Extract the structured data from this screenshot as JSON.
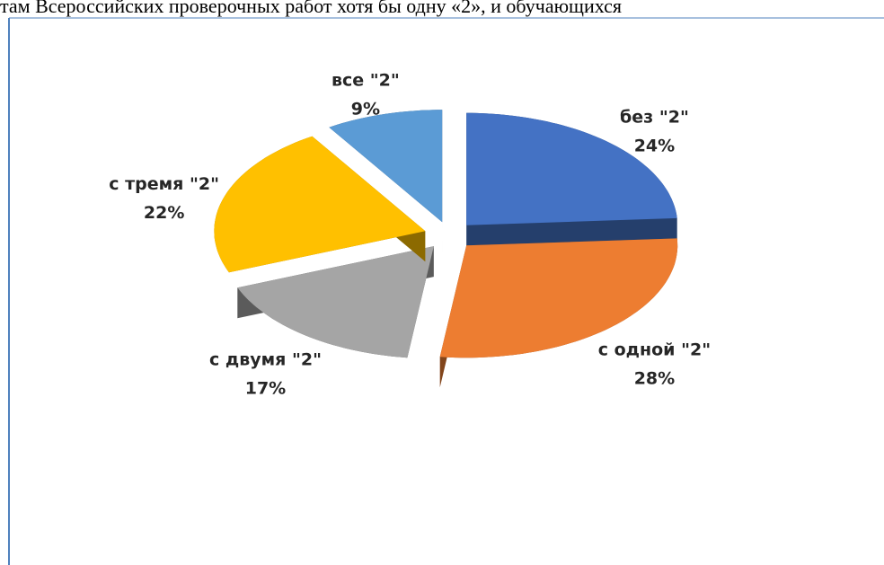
{
  "header_text": "там Всероссийских проверочных работ хотя бы одну «2», и обучающихся",
  "chart_data": {
    "type": "pie",
    "categories": [
      "без \"2\"",
      "с одной \"2\"",
      "с двумя \"2\"",
      "с тремя \"2\"",
      "все \"2\""
    ],
    "values": [
      24,
      28,
      17,
      22,
      9
    ],
    "value_labels": [
      "24%",
      "28%",
      "17%",
      "22%",
      "9%"
    ],
    "colors": [
      "#4472c4",
      "#ed7d31",
      "#a5a5a5",
      "#ffc000",
      "#5b9bd5"
    ]
  }
}
